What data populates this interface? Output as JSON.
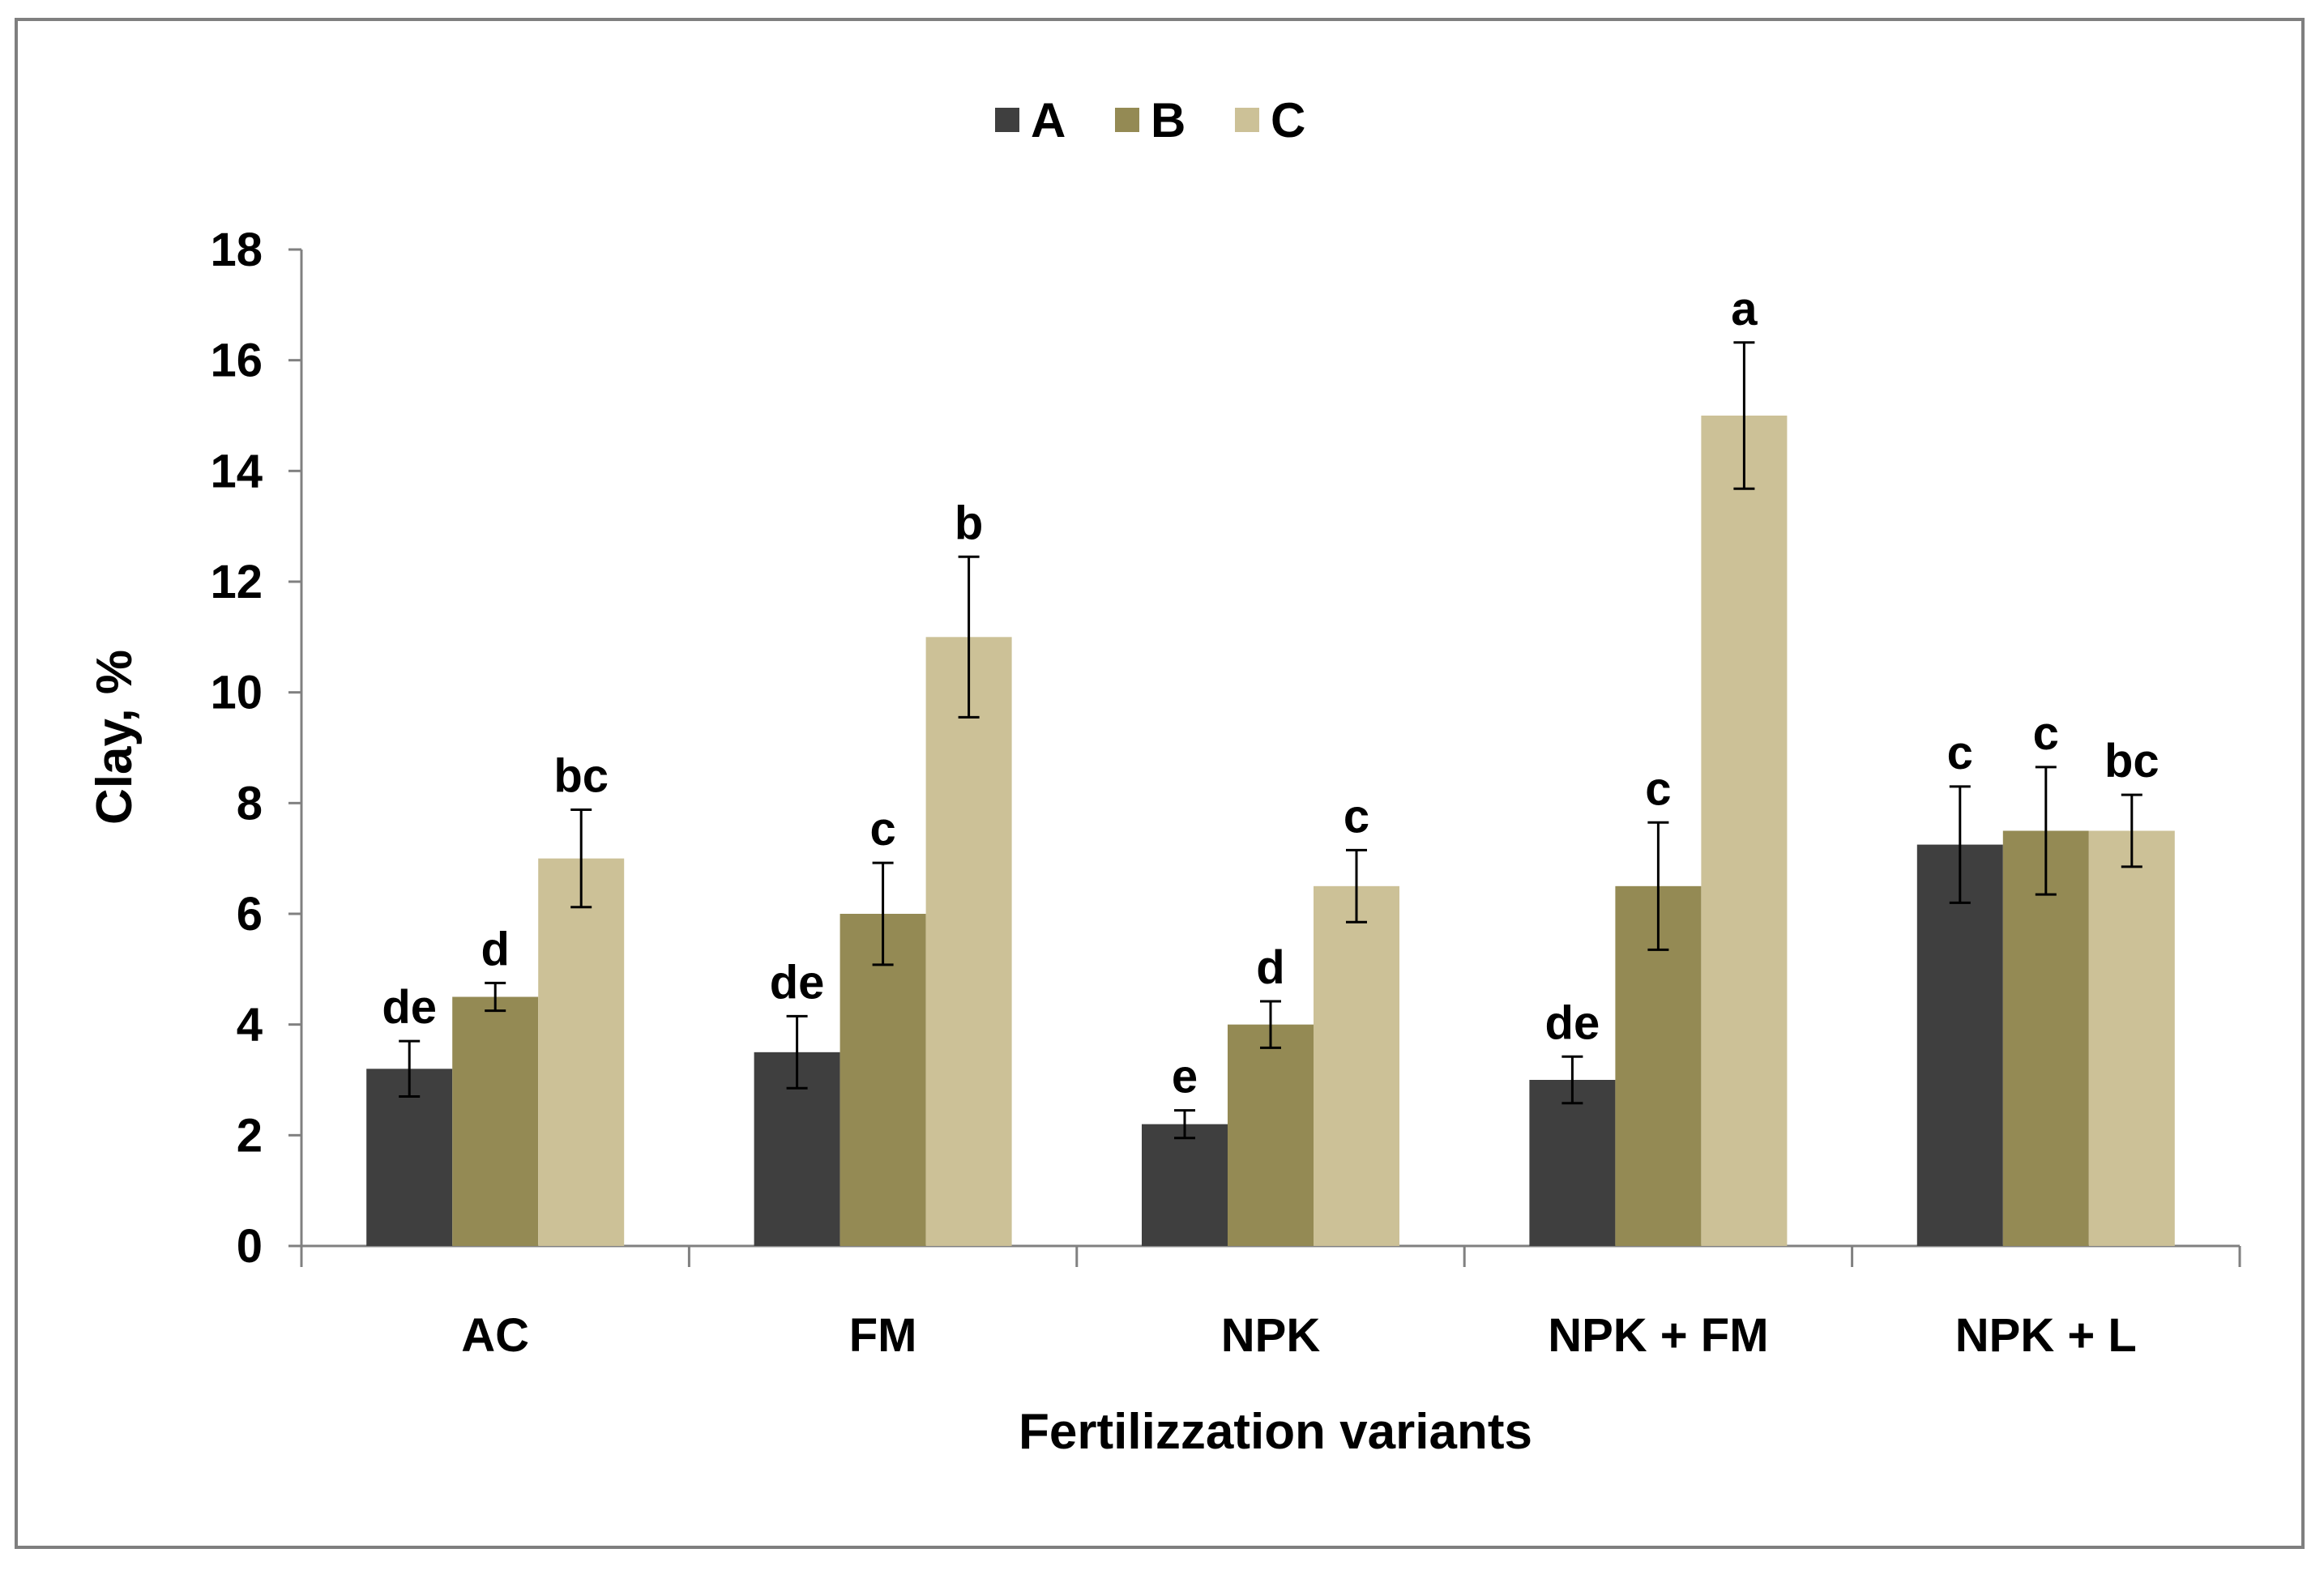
{
  "chart_data": {
    "type": "bar",
    "title": "",
    "xlabel": "Fertilizzation variants",
    "ylabel": "Clay, %",
    "ylim": [
      0,
      18
    ],
    "yticks": [
      0,
      2,
      4,
      6,
      8,
      10,
      12,
      14,
      16,
      18
    ],
    "grid": false,
    "legend_position": "top-center",
    "categories": [
      "AC",
      "FM",
      "NPK",
      "NPK + FM",
      "NPK + L"
    ],
    "series": [
      {
        "name": "A",
        "color": "#3f3f3f",
        "values": [
          3.2,
          3.5,
          2.2,
          3.0,
          7.25
        ],
        "errors": [
          0.5,
          0.65,
          0.25,
          0.42,
          1.05
        ],
        "labels": [
          "de",
          "de",
          "e",
          "de",
          "c"
        ]
      },
      {
        "name": "B",
        "color": "#948a54",
        "values": [
          4.5,
          6.0,
          4.0,
          6.5,
          7.5
        ],
        "errors": [
          0.25,
          0.92,
          0.42,
          1.15,
          1.15
        ],
        "labels": [
          "d",
          "c",
          "d",
          "c",
          "c"
        ]
      },
      {
        "name": "C",
        "color": "#ccc197",
        "values": [
          7.0,
          11.0,
          6.5,
          15.0,
          7.5
        ],
        "errors": [
          0.88,
          1.45,
          0.65,
          1.32,
          0.65
        ],
        "labels": [
          "bc",
          "b",
          "c",
          "a",
          "bc"
        ]
      }
    ]
  }
}
